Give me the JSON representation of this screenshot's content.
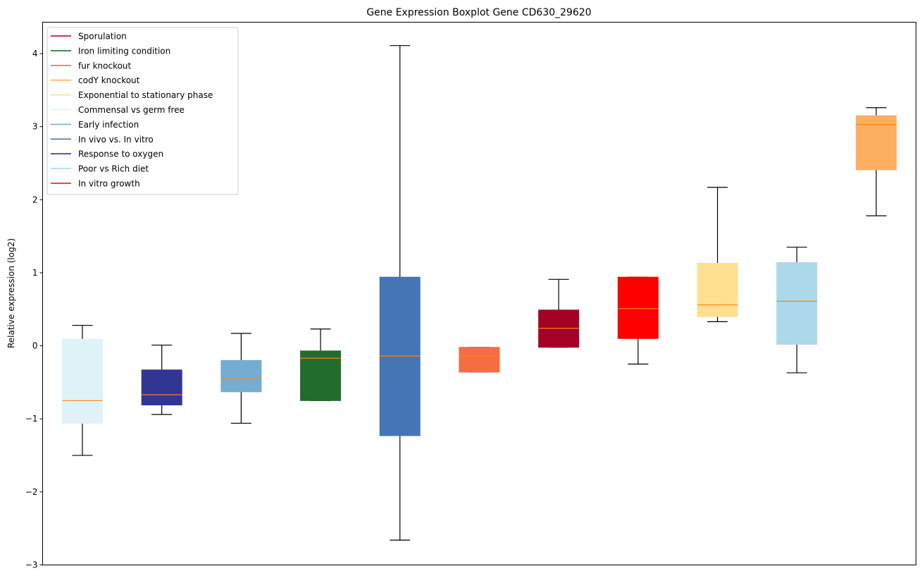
{
  "chart_data": {
    "type": "boxplot",
    "title": "Gene Expression Boxplot Gene CD630_29620",
    "xlabel": "",
    "ylabel": "Relative expression (log2)",
    "ylim": [
      -3,
      4.43
    ],
    "yticks": [
      -3,
      -2,
      -1,
      0,
      1,
      2,
      3,
      4
    ],
    "ytick_labels": [
      "−3",
      "−2",
      "−1",
      "0",
      "1",
      "2",
      "3",
      "4"
    ],
    "grid": false,
    "legend_position": "top-left",
    "median_color": "#ff7f0e",
    "series": [
      {
        "name": "Commensal vs germ free",
        "color": "#dff2f8",
        "whisker_low": -1.5,
        "q1": -1.06,
        "median": -0.75,
        "q3": 0.09,
        "whisker_high": 0.28
      },
      {
        "name": "Response to oxygen",
        "color": "#313695",
        "whisker_low": -0.94,
        "q1": -0.81,
        "median": -0.67,
        "q3": -0.33,
        "whisker_high": 0.01
      },
      {
        "name": "Early infection",
        "color": "#74add1",
        "whisker_low": -1.06,
        "q1": -0.63,
        "median": -0.44,
        "q3": -0.2,
        "whisker_high": 0.17
      },
      {
        "name": "Iron limiting condition",
        "color": "#226c2e",
        "whisker_low": -0.75,
        "q1": -0.75,
        "median": -0.17,
        "q3": -0.07,
        "whisker_high": 0.23
      },
      {
        "name": "In vivo vs. In vitro",
        "color": "#4575b4",
        "whisker_low": -2.66,
        "q1": -1.23,
        "median": -0.14,
        "q3": 0.94,
        "whisker_high": 4.11
      },
      {
        "name": "fur knockout",
        "color": "#f46d43",
        "whisker_low": -0.36,
        "q1": -0.36,
        "median": -0.14,
        "q3": -0.02,
        "whisker_high": -0.02
      },
      {
        "name": "Sporulation",
        "color": "#a50026",
        "whisker_low": -0.02,
        "q1": -0.02,
        "median": 0.24,
        "q3": 0.49,
        "whisker_high": 0.91
      },
      {
        "name": "In vitro growth",
        "color": "#ff0000",
        "whisker_low": -0.25,
        "q1": 0.1,
        "median": 0.51,
        "q3": 0.94,
        "whisker_high": 0.94
      },
      {
        "name": "Exponential to stationary phase",
        "color": "#fee090",
        "whisker_low": 0.33,
        "q1": 0.4,
        "median": 0.56,
        "q3": 1.13,
        "whisker_high": 2.17
      },
      {
        "name": "Poor vs Rich diet",
        "color": "#abd9e9",
        "whisker_low": -0.37,
        "q1": 0.02,
        "median": 0.61,
        "q3": 1.14,
        "whisker_high": 1.35
      },
      {
        "name": "codY knockout",
        "color": "#fdae61",
        "whisker_low": 1.78,
        "q1": 2.41,
        "median": 3.03,
        "q3": 3.15,
        "whisker_high": 3.26
      }
    ],
    "legend": [
      {
        "label": "Sporulation",
        "color": "#a50026"
      },
      {
        "label": "Iron limiting condition",
        "color": "#226c2e"
      },
      {
        "label": "fur knockout",
        "color": "#f46d43"
      },
      {
        "label": "codY knockout",
        "color": "#fdae61"
      },
      {
        "label": "Exponential to stationary phase",
        "color": "#fee090"
      },
      {
        "label": "Commensal vs germ free",
        "color": "#dff2f8"
      },
      {
        "label": "Early infection",
        "color": "#74add1"
      },
      {
        "label": "In vivo vs. In vitro",
        "color": "#4575b4"
      },
      {
        "label": "Response to oxygen",
        "color": "#313695"
      },
      {
        "label": "Poor vs Rich diet",
        "color": "#abd9e9"
      },
      {
        "label": "In vitro growth",
        "color": "#ff0000"
      }
    ]
  }
}
